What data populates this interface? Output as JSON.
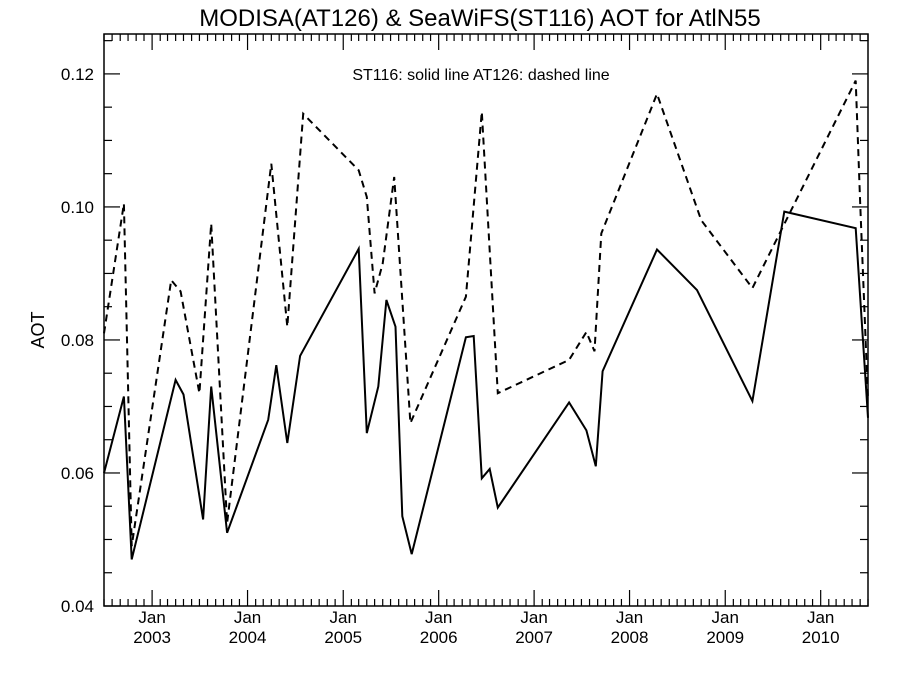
{
  "chart_data": {
    "type": "line",
    "title": "MODISA(AT126) & SeaWiFS(ST116)  AOT for AtlN55",
    "annotation": "ST116: solid line   AT126: dashed line",
    "xlabel": "",
    "ylabel": "AOT",
    "xlim": [
      "2002-07-01",
      "2010-07-01"
    ],
    "ylim": [
      0.04,
      0.126
    ],
    "y_ticks": [
      0.04,
      0.06,
      0.08,
      0.1,
      0.12
    ],
    "y_tick_labels": [
      "0.04",
      "0.06",
      "0.08",
      "0.10",
      "0.12"
    ],
    "x_ticks": [
      {
        "date": "2003-01-01",
        "month": "Jan",
        "year": "2003"
      },
      {
        "date": "2004-01-01",
        "month": "Jan",
        "year": "2004"
      },
      {
        "date": "2005-01-01",
        "month": "Jan",
        "year": "2005"
      },
      {
        "date": "2006-01-01",
        "month": "Jan",
        "year": "2006"
      },
      {
        "date": "2007-01-01",
        "month": "Jan",
        "year": "2007"
      },
      {
        "date": "2008-01-01",
        "month": "Jan",
        "year": "2008"
      },
      {
        "date": "2009-01-01",
        "month": "Jan",
        "year": "2009"
      },
      {
        "date": "2010-01-01",
        "month": "Jan",
        "year": "2010"
      }
    ],
    "grid": false,
    "legend": "none",
    "series": [
      {
        "style": "solid",
        "color": "#000000",
        "points": [
          [
            "2002-07-01",
            0.06
          ],
          [
            "2002-09-15",
            0.0715
          ],
          [
            "2002-10-15",
            0.047
          ],
          [
            "2003-04-01",
            0.074
          ],
          [
            "2003-05-01",
            0.0718
          ],
          [
            "2003-07-15",
            0.053
          ],
          [
            "2003-08-15",
            0.073
          ],
          [
            "2003-10-15",
            0.051
          ],
          [
            "2004-03-20",
            0.068
          ],
          [
            "2004-04-20",
            0.0762
          ],
          [
            "2004-06-01",
            0.0645
          ],
          [
            "2004-07-20",
            0.0776
          ],
          [
            "2005-03-01",
            0.0937
          ],
          [
            "2005-04-01",
            0.066
          ],
          [
            "2005-05-15",
            0.073
          ],
          [
            "2005-06-15",
            0.086
          ],
          [
            "2005-07-20",
            0.082
          ],
          [
            "2005-08-15",
            0.0535
          ],
          [
            "2005-09-20",
            0.0478
          ],
          [
            "2006-04-15",
            0.0804
          ],
          [
            "2006-05-15",
            0.0806
          ],
          [
            "2006-06-15",
            0.0592
          ],
          [
            "2006-07-15",
            0.0606
          ],
          [
            "2006-08-15",
            0.0548
          ],
          [
            "2007-05-15",
            0.0706
          ],
          [
            "2007-07-20",
            0.0664
          ],
          [
            "2007-08-25",
            0.061
          ],
          [
            "2007-09-20",
            0.0753
          ],
          [
            "2008-04-15",
            0.0936
          ],
          [
            "2008-09-15",
            0.0875
          ],
          [
            "2009-04-15",
            0.0708
          ],
          [
            "2009-08-15",
            0.0993
          ],
          [
            "2010-05-15",
            0.0968
          ],
          [
            "2010-07-01",
            0.0683
          ]
        ]
      },
      {
        "style": "dashed",
        "color": "#000000",
        "points": [
          [
            "2002-07-01",
            0.081
          ],
          [
            "2002-09-15",
            0.1005
          ],
          [
            "2002-10-15",
            0.049
          ],
          [
            "2003-03-15",
            0.089
          ],
          [
            "2003-04-20",
            0.0873
          ],
          [
            "2003-07-01",
            0.072
          ],
          [
            "2003-08-15",
            0.0975
          ],
          [
            "2003-10-15",
            0.0525
          ],
          [
            "2004-04-01",
            0.1065
          ],
          [
            "2004-06-01",
            0.082
          ],
          [
            "2004-08-01",
            0.114
          ],
          [
            "2005-03-01",
            0.1055
          ],
          [
            "2005-04-01",
            0.1015
          ],
          [
            "2005-05-01",
            0.087
          ],
          [
            "2005-06-01",
            0.0915
          ],
          [
            "2005-07-15",
            0.1045
          ],
          [
            "2005-09-15",
            0.0675
          ],
          [
            "2006-04-15",
            0.0865
          ],
          [
            "2006-06-15",
            0.1143
          ],
          [
            "2006-08-15",
            0.072
          ],
          [
            "2007-05-15",
            0.077
          ],
          [
            "2007-07-20",
            0.0812
          ],
          [
            "2007-08-20",
            0.0783
          ],
          [
            "2007-09-15",
            0.096
          ],
          [
            "2008-04-15",
            0.117
          ],
          [
            "2008-10-01",
            0.098
          ],
          [
            "2009-04-15",
            0.0878
          ],
          [
            "2010-05-15",
            0.119
          ],
          [
            "2010-06-01",
            0.1005
          ],
          [
            "2010-07-01",
            0.071
          ]
        ]
      }
    ]
  }
}
